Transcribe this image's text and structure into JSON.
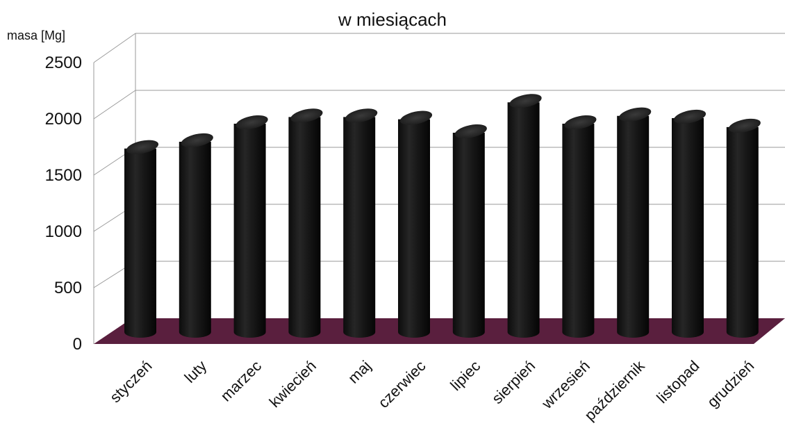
{
  "chart_data": {
    "type": "bar",
    "title": "w miesiącach",
    "ylabel": "masa [Mg]",
    "xlabel": "",
    "categories": [
      "styczeń",
      "luty",
      "marzec",
      "kwiecień",
      "maj",
      "czerwiec",
      "lipiec",
      "sierpień",
      "wrzesień",
      "październik",
      "listopad",
      "grudzień"
    ],
    "series": [
      {
        "values": [
          1650,
          1710,
          1870,
          1930,
          1930,
          1910,
          1790,
          2060,
          1870,
          1940,
          1920,
          1840
        ]
      }
    ],
    "ylim": [
      0,
      2500
    ],
    "yticks": [
      "0",
      "500",
      "1000",
      "1500",
      "2000",
      "2500"
    ],
    "grid": true,
    "legend": "none",
    "colors": {
      "bar": "#111111",
      "floor": "#5a1f3e",
      "grid": "#9a9a9a"
    }
  }
}
